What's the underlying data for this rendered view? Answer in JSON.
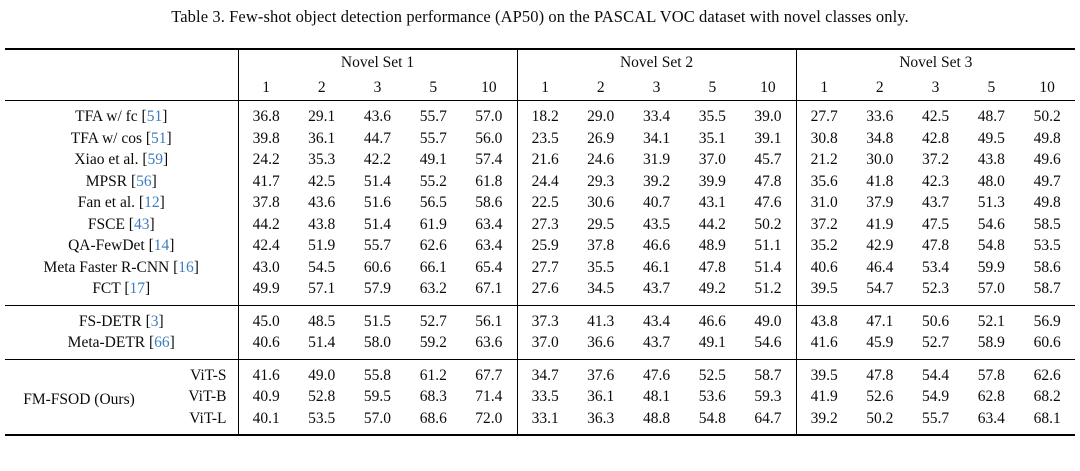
{
  "caption": "Table 3. Few-shot object detection performance (AP50) on the PASCAL VOC dataset with novel classes only.",
  "colors": {
    "citation_blue": "#3b7dbe",
    "rule_black": "#000000",
    "background": "#ffffff"
  },
  "header": {
    "groups": [
      "Novel Set 1",
      "Novel Set 2",
      "Novel Set 3"
    ],
    "shots": [
      "1",
      "2",
      "3",
      "5",
      "10"
    ]
  },
  "blocks": [
    {
      "type": "methods",
      "rows": [
        {
          "method": "TFA w/ fc",
          "cite": "51",
          "values": [
            "36.8",
            "29.1",
            "43.6",
            "55.7",
            "57.0",
            "18.2",
            "29.0",
            "33.4",
            "35.5",
            "39.0",
            "27.7",
            "33.6",
            "42.5",
            "48.7",
            "50.2"
          ]
        },
        {
          "method": "TFA w/ cos",
          "cite": "51",
          "values": [
            "39.8",
            "36.1",
            "44.7",
            "55.7",
            "56.0",
            "23.5",
            "26.9",
            "34.1",
            "35.1",
            "39.1",
            "30.8",
            "34.8",
            "42.8",
            "49.5",
            "49.8"
          ]
        },
        {
          "method": "Xiao et al.",
          "cite": "59",
          "values": [
            "24.2",
            "35.3",
            "42.2",
            "49.1",
            "57.4",
            "21.6",
            "24.6",
            "31.9",
            "37.0",
            "45.7",
            "21.2",
            "30.0",
            "37.2",
            "43.8",
            "49.6"
          ]
        },
        {
          "method": "MPSR",
          "cite": "56",
          "values": [
            "41.7",
            "42.5",
            "51.4",
            "55.2",
            "61.8",
            "24.4",
            "29.3",
            "39.2",
            "39.9",
            "47.8",
            "35.6",
            "41.8",
            "42.3",
            "48.0",
            "49.7"
          ]
        },
        {
          "method": "Fan et al.",
          "cite": "12",
          "values": [
            "37.8",
            "43.6",
            "51.6",
            "56.5",
            "58.6",
            "22.5",
            "30.6",
            "40.7",
            "43.1",
            "47.6",
            "31.0",
            "37.9",
            "43.7",
            "51.3",
            "49.8"
          ]
        },
        {
          "method": "FSCE",
          "cite": "43",
          "values": [
            "44.2",
            "43.8",
            "51.4",
            "61.9",
            "63.4",
            "27.3",
            "29.5",
            "43.5",
            "44.2",
            "50.2",
            "37.2",
            "41.9",
            "47.5",
            "54.6",
            "58.5"
          ]
        },
        {
          "method": "QA-FewDet",
          "cite": "14",
          "values": [
            "42.4",
            "51.9",
            "55.7",
            "62.6",
            "63.4",
            "25.9",
            "37.8",
            "46.6",
            "48.9",
            "51.1",
            "35.2",
            "42.9",
            "47.8",
            "54.8",
            "53.5"
          ]
        },
        {
          "method": "Meta Faster R-CNN",
          "cite": "16",
          "values": [
            "43.0",
            "54.5",
            "60.6",
            "66.1",
            "65.4",
            "27.7",
            "35.5",
            "46.1",
            "47.8",
            "51.4",
            "40.6",
            "46.4",
            "53.4",
            "59.9",
            "58.6"
          ]
        },
        {
          "method": "FCT",
          "cite": "17",
          "values": [
            "49.9",
            "57.1",
            "57.9",
            "63.2",
            "67.1",
            "27.6",
            "34.5",
            "43.7",
            "49.2",
            "51.2",
            "39.5",
            "54.7",
            "52.3",
            "57.0",
            "58.7"
          ]
        }
      ]
    },
    {
      "type": "methods",
      "rows": [
        {
          "method": "FS-DETR",
          "cite": "3",
          "values": [
            "45.0",
            "48.5",
            "51.5",
            "52.7",
            "56.1",
            "37.3",
            "41.3",
            "43.4",
            "46.6",
            "49.0",
            "43.8",
            "47.1",
            "50.6",
            "52.1",
            "56.9"
          ]
        },
        {
          "method": "Meta-DETR",
          "cite": "66",
          "values": [
            "40.6",
            "51.4",
            "58.0",
            "59.2",
            "63.6",
            "37.0",
            "36.6",
            "43.7",
            "49.1",
            "54.6",
            "41.6",
            "45.9",
            "52.7",
            "58.9",
            "60.6"
          ]
        }
      ]
    },
    {
      "type": "ours",
      "group_label": "FM-FSOD (Ours)",
      "rows": [
        {
          "backbone": "ViT-S",
          "values": [
            "41.6",
            "49.0",
            "55.8",
            "61.2",
            "67.7",
            "34.7",
            "37.6",
            "47.6",
            "52.5",
            "58.7",
            "39.5",
            "47.8",
            "54.4",
            "57.8",
            "62.6"
          ]
        },
        {
          "backbone": "ViT-B",
          "values": [
            "40.9",
            "52.8",
            "59.5",
            "68.3",
            "71.4",
            "33.5",
            "36.1",
            "48.1",
            "53.6",
            "59.3",
            "41.9",
            "52.6",
            "54.9",
            "62.8",
            "68.2"
          ]
        },
        {
          "backbone": "ViT-L",
          "values": [
            "40.1",
            "53.5",
            "57.0",
            "68.6",
            "72.0",
            "33.1",
            "36.3",
            "48.8",
            "54.8",
            "64.7",
            "39.2",
            "50.2",
            "55.7",
            "63.4",
            "68.1"
          ]
        }
      ]
    }
  ]
}
